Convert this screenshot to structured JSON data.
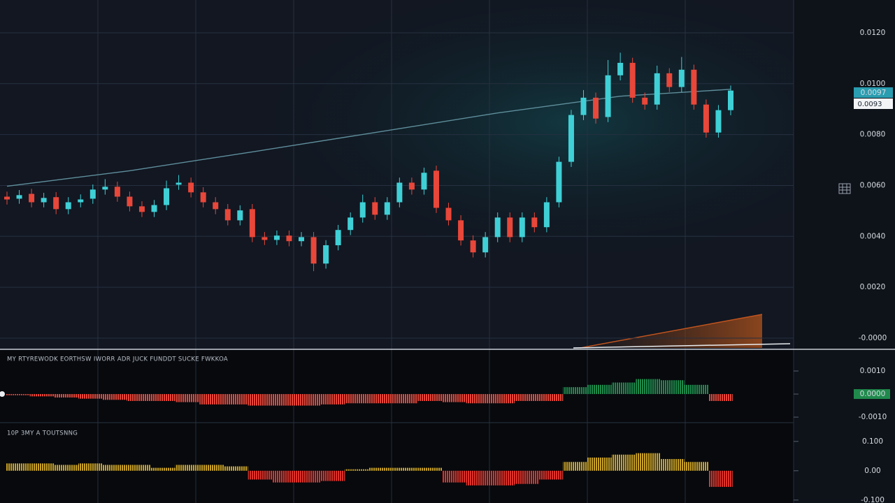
{
  "chart_data": [
    {
      "type": "candlestick",
      "open": [
        0.00556,
        0.00548,
        0.00567,
        0.00534,
        0.00554,
        0.00507,
        0.00534,
        0.00548,
        0.00584,
        0.00595,
        0.00556,
        0.00518,
        0.00496,
        0.00523,
        0.00603,
        0.00611,
        0.00573,
        0.00534,
        0.00507,
        0.00463,
        0.00507,
        0.00397,
        0.00386,
        0.00403,
        0.00381,
        0.00397,
        0.00293,
        0.00365,
        0.00425,
        0.00474,
        0.00534,
        0.00485,
        0.00534,
        0.00611,
        0.00584,
        0.00658,
        0.00512,
        0.00463,
        0.00384,
        0.00337,
        0.00397,
        0.00474,
        0.00397,
        0.00474,
        0.00436,
        0.00534,
        0.00693,
        0.00877,
        0.00945,
        0.00869,
        0.01033,
        0.01082,
        0.00945,
        0.00918,
        0.01041,
        0.00987,
        0.01055,
        0.00918,
        0.00808,
        0.00896
      ],
      "high": [
        0.00576,
        0.00582,
        0.00587,
        0.00571,
        0.00574,
        0.00554,
        0.00565,
        0.00604,
        0.00625,
        0.00615,
        0.00576,
        0.00538,
        0.00543,
        0.00619,
        0.00641,
        0.00631,
        0.00593,
        0.00554,
        0.00527,
        0.00522,
        0.00527,
        0.00417,
        0.00423,
        0.00423,
        0.00417,
        0.00417,
        0.00385,
        0.00445,
        0.00494,
        0.00564,
        0.00554,
        0.00554,
        0.00631,
        0.00631,
        0.0067,
        0.00678,
        0.00532,
        0.00483,
        0.00404,
        0.00417,
        0.00494,
        0.00494,
        0.00494,
        0.00494,
        0.00554,
        0.00713,
        0.00897,
        0.00975,
        0.00965,
        0.01093,
        0.01122,
        0.01102,
        0.00965,
        0.01071,
        0.01061,
        0.01105,
        0.01075,
        0.00938,
        0.00916,
        0.00993
      ],
      "low": [
        0.00525,
        0.00528,
        0.00514,
        0.00514,
        0.00487,
        0.00487,
        0.00514,
        0.00528,
        0.00564,
        0.00536,
        0.00498,
        0.00476,
        0.00476,
        0.00503,
        0.00583,
        0.00553,
        0.00514,
        0.00487,
        0.00443,
        0.00443,
        0.00377,
        0.00366,
        0.00366,
        0.00361,
        0.00361,
        0.00263,
        0.00273,
        0.00345,
        0.00405,
        0.00454,
        0.00465,
        0.00465,
        0.00514,
        0.00564,
        0.00564,
        0.00492,
        0.00443,
        0.00364,
        0.00317,
        0.00317,
        0.00377,
        0.00377,
        0.00377,
        0.00416,
        0.00416,
        0.00514,
        0.00673,
        0.00857,
        0.00843,
        0.00849,
        0.01013,
        0.00925,
        0.00898,
        0.00898,
        0.00967,
        0.00967,
        0.00898,
        0.00788,
        0.00788,
        0.00876
      ],
      "close": [
        0.00545,
        0.00562,
        0.00534,
        0.00551,
        0.00507,
        0.00534,
        0.00545,
        0.00584,
        0.00595,
        0.00556,
        0.00518,
        0.00496,
        0.00523,
        0.00589,
        0.00611,
        0.00573,
        0.00534,
        0.00507,
        0.00463,
        0.00502,
        0.00397,
        0.00386,
        0.00403,
        0.00381,
        0.00397,
        0.00293,
        0.00365,
        0.00425,
        0.00474,
        0.00534,
        0.00485,
        0.00534,
        0.00611,
        0.00584,
        0.0065,
        0.00512,
        0.00463,
        0.00384,
        0.00337,
        0.00397,
        0.00474,
        0.00397,
        0.00474,
        0.00436,
        0.00534,
        0.00693,
        0.00877,
        0.00945,
        0.00863,
        0.01033,
        0.01082,
        0.00945,
        0.00918,
        0.01041,
        0.00987,
        0.01055,
        0.00918,
        0.00808,
        0.00896,
        0.00973
      ],
      "up_color": "#3fd0d6",
      "down_color": "#e8473a",
      "ma": {
        "x": [
          0,
          10,
          20,
          30,
          40,
          50,
          59
        ],
        "values": [
          0.00597,
          0.00658,
          0.00732,
          0.00808,
          0.00885,
          0.00951,
          0.00978
        ],
        "color": "#5f8f9c"
      },
      "ylim": [
        -0.00044,
        0.01329
      ],
      "yticks": [
        {
          "value": 0.012,
          "label": "0.0120"
        },
        {
          "value": 0.01,
          "label": "0.0100"
        },
        {
          "value": 0.008,
          "label": "0.0080"
        },
        {
          "value": 0.006,
          "label": "0.0060"
        },
        {
          "value": 0.004,
          "label": "0.0040"
        },
        {
          "value": 0.002,
          "label": "0.0020"
        },
        {
          "value": 0,
          "label": "-0.0000"
        }
      ],
      "grid": true,
      "price_tags": [
        "0.0097",
        "0.0093"
      ]
    },
    {
      "type": "bar",
      "title": "MY RTYREWODK  EORTHSW  IWORR ADR  JUCK  FUNDDT  SUCKE  FWKKOA",
      "values": [
        -5e-05,
        -0.0001,
        -0.00015,
        -0.0002,
        -0.00025,
        -0.0003,
        -0.0003,
        -0.00035,
        -0.00045,
        -0.00045,
        -0.0005,
        -0.0005,
        -0.0005,
        -0.00045,
        -0.0004,
        -0.0004,
        -0.0004,
        -0.0003,
        -0.00035,
        -0.0004,
        -0.0004,
        -0.0003,
        -0.0003,
        0.0003,
        0.0004,
        0.0005,
        0.00065,
        0.0006,
        0.0004,
        -0.0003
      ],
      "pos_color": "#1f8a4c",
      "neg_color": "#e8473a",
      "ylim": [
        -0.00124,
        0.00194
      ],
      "yticks": [
        {
          "value": 0.001,
          "label": "0.0010"
        },
        {
          "value": 0,
          "label": "0.0000"
        },
        {
          "value": -0.001,
          "label": "-0.0010"
        }
      ],
      "zero_tag_color": "#1f8a4c"
    },
    {
      "type": "bar",
      "title": "10P 3MY A TOUTSNNG",
      "values": [
        0.025,
        0.025,
        0.02,
        0.025,
        0.02,
        0.02,
        0.01,
        0.02,
        0.02,
        0.015,
        -0.03,
        -0.04,
        -0.04,
        -0.035,
        0.005,
        0.01,
        0.01,
        0.01,
        -0.04,
        -0.05,
        -0.05,
        -0.045,
        -0.03,
        0.03,
        0.045,
        0.055,
        0.06,
        0.04,
        0.03,
        -0.055
      ],
      "pos_color": "#c9a227",
      "neg_color": "#e0332a",
      "ylim": [
        -0.11,
        0.164
      ],
      "yticks": [
        {
          "value": 0.1,
          "label": "0.100"
        },
        {
          "value": 0,
          "label": "0.00"
        },
        {
          "value": -0.1,
          "label": "-0.100"
        }
      ]
    }
  ]
}
